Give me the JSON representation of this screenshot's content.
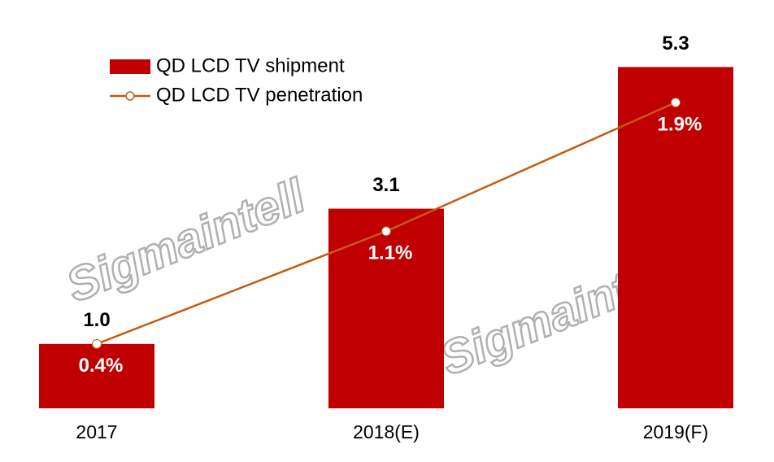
{
  "chart_data": {
    "type": "bar-line",
    "categories": [
      "2017",
      "2018(E)",
      "2019(F)"
    ],
    "series": [
      {
        "name": "QD LCD TV shipment",
        "type": "bar",
        "color": "#c00000",
        "values": [
          1.0,
          3.1,
          5.3
        ],
        "value_labels": [
          "1.0",
          "3.1",
          "5.3"
        ]
      },
      {
        "name": "QD LCD TV penetration",
        "type": "line",
        "axis": "y2",
        "color": "#c55a11",
        "values": [
          0.4,
          1.1,
          1.9
        ],
        "value_labels": [
          "0.4%",
          "1.1%",
          "1.9%"
        ]
      }
    ],
    "ylim": [
      0,
      6
    ],
    "y2lim": [
      0,
      2.4
    ],
    "watermark": "Sigmaintell"
  }
}
